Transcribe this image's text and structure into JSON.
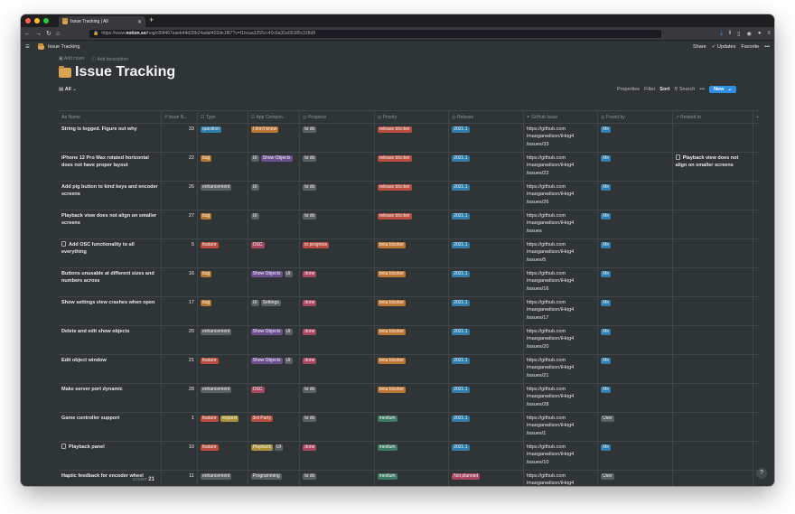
{
  "browser": {
    "tab_title": "Issue Tracking | All",
    "url_prefix": "https://www.",
    "url_domain": "notion.so",
    "url_path": "/hog/c89f467eaeb44d28b24adaf402de1f87?v=f1bcaa3255cc40c6a30a05385c31fb8f"
  },
  "notion": {
    "breadcrumb": "Issue Tracking",
    "share": "Share",
    "updates": "Updates",
    "favorite": "Favorite",
    "more": "•••"
  },
  "page": {
    "add_cover": "Add cover",
    "add_description": "Add description",
    "title": "Issue Tracking"
  },
  "view": {
    "name": "All",
    "properties": "Properties",
    "filter": "Filter",
    "sort": "Sort",
    "search": "Search",
    "more": "•••",
    "new": "New"
  },
  "columns": [
    "Name",
    "Issue N...",
    "Type",
    "App Compon...",
    "Progress",
    "Priority",
    "Release",
    "GitHub Issue",
    "Found by",
    "Related to"
  ],
  "colors": {
    "question": "#2e7ea9",
    "bug": "#b87531",
    "enhancement": "#5a5f62",
    "feature": "#b84c3f",
    "request": "#a6913a",
    "idk": "#b87531",
    "ui": "#5a5f62",
    "showobjects": "#6b4f8f",
    "osc": "#a9465f",
    "settings": "#5a5f62",
    "thirdparty": "#b84c3f",
    "playback": "#a6913a",
    "programming": "#5a5f62",
    "todo": "#5a5f62",
    "inprogress": "#b84c3f",
    "done": "#a9465f",
    "releaseblocker": "#b84c3f",
    "betablocker": "#b87531",
    "medium": "#3a7a62",
    "notplanned": "#a9465f",
    "release": "#2e7ea9",
    "me": "#2e7ea9",
    "user": "#5a5f62"
  },
  "rows": [
    {
      "name": "String is logged. Figure out why",
      "num": "33",
      "type": [
        [
          "question",
          "question"
        ]
      ],
      "comp": [
        [
          "I don't know",
          "idk"
        ]
      ],
      "progress": [
        "to do",
        "todo"
      ],
      "priority": [
        "release blocker",
        "releaseblocker"
      ],
      "release": "2021.1",
      "gh": [
        "https://github.com",
        "/maeganwilson/iHog4",
        "/issues/33"
      ],
      "found": [
        "Me",
        "me"
      ],
      "related": ""
    },
    {
      "name": "iPhone 12 Pro Max rotated horizontal does not have proper layout",
      "num": "22",
      "type": [
        [
          "bug",
          "bug"
        ]
      ],
      "comp": [
        [
          "UI",
          "ui"
        ],
        [
          "Show Objects",
          "showobjects"
        ]
      ],
      "progress": [
        "to do",
        "todo"
      ],
      "priority": [
        "release blocker",
        "releaseblocker"
      ],
      "release": "2021.1",
      "gh": [
        "https://github.com",
        "/maeganwilson/iHog4",
        "/issues/22"
      ],
      "found": [
        "Me",
        "me"
      ],
      "related": "Playback view does not align on smaller screens"
    },
    {
      "name": "Add pig button to kind keys and encoder screens",
      "num": "26",
      "type": [
        [
          "enhancement",
          "enhancement"
        ]
      ],
      "comp": [
        [
          "UI",
          "ui"
        ]
      ],
      "progress": [
        "to do",
        "todo"
      ],
      "priority": [
        "release blocker",
        "releaseblocker"
      ],
      "release": "2021.1",
      "gh": [
        "https://github.com",
        "/maeganwilson/iHog4",
        "/issues/26"
      ],
      "found": [
        "Me",
        "me"
      ],
      "related": ""
    },
    {
      "name": "Playback view does not align on smaller screens",
      "num": "27",
      "type": [
        [
          "bug",
          "bug"
        ]
      ],
      "comp": [
        [
          "UI",
          "ui"
        ]
      ],
      "progress": [
        "to do",
        "todo"
      ],
      "priority": [
        "release blocker",
        "releaseblocker"
      ],
      "release": "2021.1",
      "gh": [
        "https://github.com",
        "/maeganwilson/iHog4",
        "/issues"
      ],
      "found": [
        "Me",
        "me"
      ],
      "related": ""
    },
    {
      "name": "Add OSC functionality to all everything",
      "num": "5",
      "type": [
        [
          "feature",
          "feature"
        ]
      ],
      "comp": [
        [
          "OSC",
          "osc"
        ]
      ],
      "progress": [
        "in progress",
        "inprogress"
      ],
      "priority": [
        "beta blocker",
        "betablocker"
      ],
      "release": "2021.1",
      "gh": [
        "https://github.com",
        "/maeganwilson/iHog4",
        "/issues/5"
      ],
      "found": [
        "Me",
        "me"
      ],
      "related": ""
    },
    {
      "name": "Buttons unusable at different sizes and numbers across",
      "num": "16",
      "type": [
        [
          "bug",
          "bug"
        ]
      ],
      "comp": [
        [
          "Show Objects",
          "showobjects"
        ],
        [
          "UI",
          "ui"
        ]
      ],
      "progress": [
        "done",
        "done"
      ],
      "priority": [
        "beta blocker",
        "betablocker"
      ],
      "release": "2021.1",
      "gh": [
        "https://github.com",
        "/maeganwilson/iHog4",
        "/issues/16"
      ],
      "found": [
        "Me",
        "me"
      ],
      "related": ""
    },
    {
      "name": "Show settings view crashes when open",
      "num": "17",
      "type": [
        [
          "bug",
          "bug"
        ]
      ],
      "comp": [
        [
          "UI",
          "ui"
        ],
        [
          "Settings",
          "settings"
        ]
      ],
      "progress": [
        "done",
        "done"
      ],
      "priority": [
        "beta blocker",
        "betablocker"
      ],
      "release": "2021.1",
      "gh": [
        "https://github.com",
        "/maeganwilson/iHog4",
        "/issues/17"
      ],
      "found": [
        "Me",
        "me"
      ],
      "related": ""
    },
    {
      "name": "Delete and edit show objects",
      "num": "20",
      "type": [
        [
          "enhancement",
          "enhancement"
        ]
      ],
      "comp": [
        [
          "Show Objects",
          "showobjects"
        ],
        [
          "UI",
          "ui"
        ]
      ],
      "progress": [
        "done",
        "done"
      ],
      "priority": [
        "beta blocker",
        "betablocker"
      ],
      "release": "2021.1",
      "gh": [
        "https://github.com",
        "/maeganwilson/iHog4",
        "/issues/20"
      ],
      "found": [
        "Me",
        "me"
      ],
      "related": ""
    },
    {
      "name": "Edit object window",
      "num": "21",
      "type": [
        [
          "feature",
          "feature"
        ]
      ],
      "comp": [
        [
          "Show Objects",
          "showobjects"
        ],
        [
          "UI",
          "ui"
        ]
      ],
      "progress": [
        "done",
        "done"
      ],
      "priority": [
        "beta blocker",
        "betablocker"
      ],
      "release": "2021.1",
      "gh": [
        "https://github.com",
        "/maeganwilson/iHog4",
        "/issues/21"
      ],
      "found": [
        "Me",
        "me"
      ],
      "related": ""
    },
    {
      "name": "Make server port dynamic",
      "num": "28",
      "type": [
        [
          "enhancement",
          "enhancement"
        ]
      ],
      "comp": [
        [
          "OSC",
          "osc"
        ]
      ],
      "progress": [
        "to do",
        "todo"
      ],
      "priority": [
        "beta blocker",
        "betablocker"
      ],
      "release": "2021.1",
      "gh": [
        "https://github.com",
        "/maeganwilson/iHog4",
        "/issues/28"
      ],
      "found": [
        "Me",
        "me"
      ],
      "related": ""
    },
    {
      "name": "Game controller support",
      "num": "1",
      "type": [
        [
          "feature",
          "feature"
        ],
        [
          "request",
          "request"
        ]
      ],
      "comp": [
        [
          "3rd Party",
          "thirdparty"
        ]
      ],
      "progress": [
        "to do",
        "todo"
      ],
      "priority": [
        "medium",
        "medium"
      ],
      "release": "2021.1",
      "gh": [
        "https://github.com",
        "/maeganwilson/iHog4",
        "/issues/1"
      ],
      "found": [
        "User",
        "user"
      ],
      "related": ""
    },
    {
      "name": "Playback panel",
      "num": "10",
      "type": [
        [
          "feature",
          "feature"
        ]
      ],
      "comp": [
        [
          "Playback",
          "playback"
        ],
        [
          "UI",
          "ui"
        ]
      ],
      "progress": [
        "done",
        "done"
      ],
      "priority": [
        "medium",
        "medium"
      ],
      "release": "2021.1",
      "gh": [
        "https://github.com",
        "/maeganwilson/iHog4",
        "/issues/10"
      ],
      "found": [
        "Me",
        "me"
      ],
      "related": ""
    },
    {
      "name": "Haptic feedback for encoder wheel",
      "num": "11",
      "type": [
        [
          "enhancement",
          "enhancement"
        ]
      ],
      "comp": [
        [
          "Programming",
          "programming"
        ]
      ],
      "progress": [
        "to do",
        "todo"
      ],
      "priority": [
        "medium",
        "medium"
      ],
      "release": "Not planned",
      "gh": [
        "https://github.com",
        "/maeganwilson/iHog4"
      ],
      "found": [
        "User",
        "user"
      ],
      "related": ""
    }
  ],
  "footer": {
    "count_label": "COUNT",
    "count_value": "21"
  },
  "help": "?"
}
